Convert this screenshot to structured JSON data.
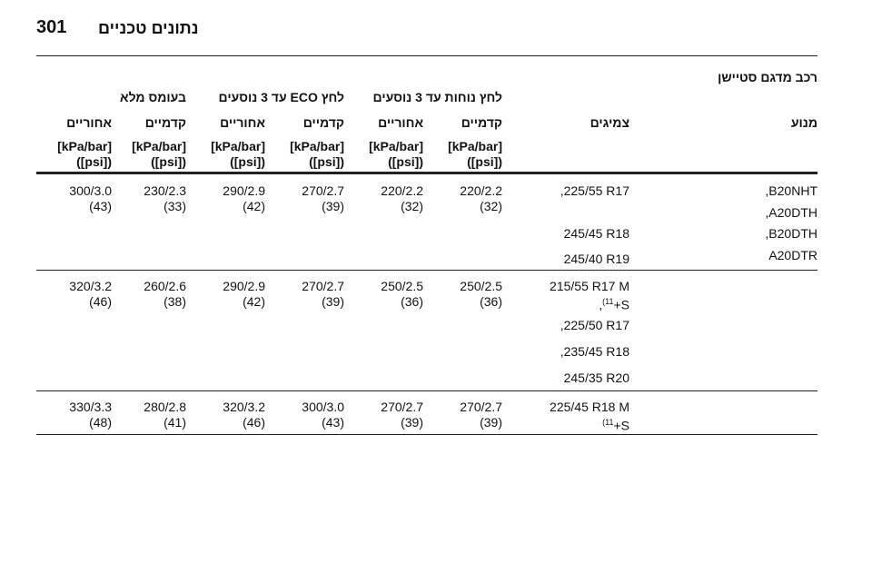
{
  "header": {
    "page_number": "301",
    "title": "נתונים טכניים"
  },
  "section_title": "רכב מדגם סטיישן",
  "table": {
    "group_headers": [
      "לחץ נוחות עד 3 נוסעים",
      "לחץ ECO עד 3 נוסעים",
      "בעומס מלא"
    ],
    "columns": [
      "מנוע",
      "צמיגים",
      "קדמיים",
      "אחוריים",
      "קדמיים",
      "אחוריים",
      "קדמיים",
      "אחוריים"
    ],
    "units": [
      [
        "[kPa/bar]",
        "([psi])"
      ],
      [
        "[kPa/bar]",
        "([psi])"
      ],
      [
        "[kPa/bar]",
        "([psi])"
      ],
      [
        "[kPa/bar]",
        "([psi])"
      ],
      [
        "[kPa/bar]",
        "([psi])"
      ],
      [
        "[kPa/bar]",
        "([psi])"
      ]
    ],
    "rows": [
      {
        "engines": [
          ",B20NHT",
          ",A20DTH",
          ",B20DTH",
          "A20DTR"
        ],
        "tires": [
          {
            "text": ",225/55 R17"
          },
          {
            "text": "245/45 R18"
          },
          {
            "text": "245/40 R19"
          }
        ],
        "pressures": [
          [
            "220/2.2",
            "(32)"
          ],
          [
            "220/2.2",
            "(32)"
          ],
          [
            "270/2.7",
            "(39)"
          ],
          [
            "290/2.9",
            "(42)"
          ],
          [
            "230/2.3",
            "(33)"
          ],
          [
            "300/3.0",
            "(43)"
          ]
        ]
      },
      {
        "engines": [],
        "tires": [
          {
            "text": "215/55 R17 M",
            "note": {
              "before": ",",
              "sup": "(11",
              "after": "+S"
            }
          },
          {
            "text": ",225/50 R17"
          },
          {
            "text": ",235/45 R18"
          },
          {
            "text": "245/35 R20"
          }
        ],
        "pressures": [
          [
            "250/2.5",
            "(36)"
          ],
          [
            "250/2.5",
            "(36)"
          ],
          [
            "270/2.7",
            "(39)"
          ],
          [
            "290/2.9",
            "(42)"
          ],
          [
            "260/2.6",
            "(38)"
          ],
          [
            "320/3.2",
            "(46)"
          ]
        ]
      },
      {
        "engines": [],
        "tires": [
          {
            "text": "225/45 R18 M",
            "note": {
              "before": "",
              "sup": "(11",
              "after": "+S"
            }
          }
        ],
        "pressures": [
          [
            "270/2.7",
            "(39)"
          ],
          [
            "270/2.7",
            "(39)"
          ],
          [
            "300/3.0",
            "(43)"
          ],
          [
            "320/3.2",
            "(46)"
          ],
          [
            "280/2.8",
            "(41)"
          ],
          [
            "330/3.3",
            "(48)"
          ]
        ]
      }
    ]
  }
}
